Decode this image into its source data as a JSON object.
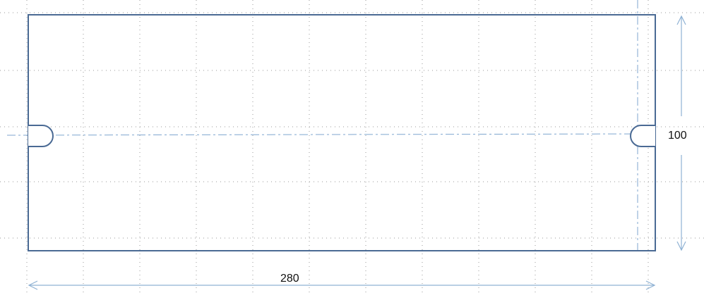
{
  "dimensions": {
    "width": 280,
    "height": 100
  }
}
